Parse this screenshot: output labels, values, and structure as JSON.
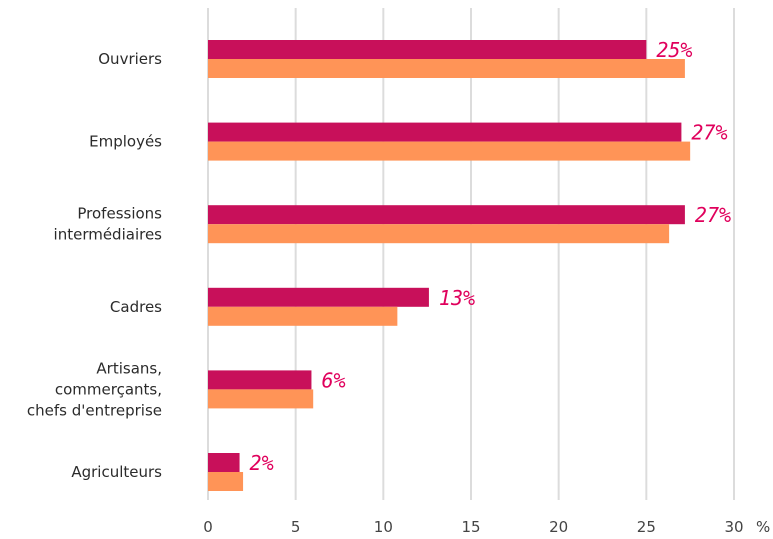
{
  "chart_data": {
    "type": "bar",
    "orientation": "horizontal",
    "categories": [
      [
        "Ouvriers"
      ],
      [
        "Employés"
      ],
      [
        "Professions",
        "intermédiaires"
      ],
      [
        "Cadres"
      ],
      [
        "Artisans,",
        "commerçants,",
        "chefs d'entreprise"
      ],
      [
        "Agriculteurs"
      ]
    ],
    "series": [
      {
        "values": [
          25,
          27,
          27.2,
          12.6,
          5.9,
          1.8
        ],
        "color": "#c8105a"
      },
      {
        "values": [
          27.2,
          27.5,
          26.3,
          10.8,
          6.0,
          2.0
        ],
        "color": "#ff9457"
      }
    ],
    "data_labels": [
      "25%",
      "27%",
      "27%",
      "13%",
      "6%",
      "2%"
    ],
    "data_label_color": "#e0005c",
    "xlim": [
      0,
      30
    ],
    "xticks": [
      "0",
      "5",
      "10",
      "15",
      "20",
      "25",
      "30"
    ],
    "x_unit": "%",
    "grid": true
  }
}
